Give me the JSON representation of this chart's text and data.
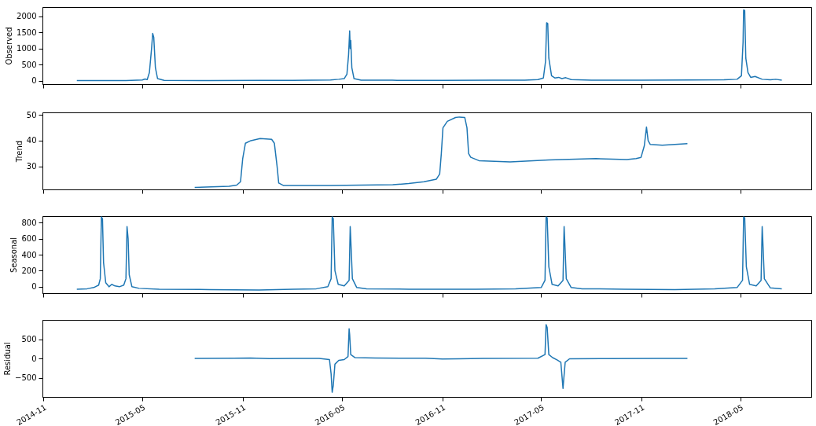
{
  "chart_data": [
    {
      "type": "line",
      "ylabel": "Observed",
      "color": "#1f77b4",
      "xlim": [
        "2014-10-30",
        "2018-09-08"
      ],
      "xticks": [
        "2014-11",
        "2015-05",
        "2015-11",
        "2016-05",
        "2016-11",
        "2017-05",
        "2017-11",
        "2018-05"
      ],
      "ylim": [
        -110,
        2290
      ],
      "yticks": [
        0,
        500,
        1000,
        1500,
        2000
      ],
      "tick_labels": "y",
      "x": [
        "2015-01-01",
        "2015-02-15",
        "2015-04-01",
        "2015-05-01",
        "2015-05-06",
        "2015-05-10",
        "2015-05-14",
        "2015-05-18",
        "2015-05-20",
        "2015-05-22",
        "2015-05-25",
        "2015-05-29",
        "2015-06-10",
        "2015-09-01",
        "2015-12-01",
        "2016-02-01",
        "2016-04-10",
        "2016-04-25",
        "2016-05-05",
        "2016-05-10",
        "2016-05-13",
        "2016-05-15",
        "2016-05-16",
        "2016-05-17",
        "2016-05-19",
        "2016-05-23",
        "2016-06-05",
        "2016-08-01",
        "2016-08-10",
        "2016-11-01",
        "2017-02-01",
        "2017-04-01",
        "2017-04-25",
        "2017-05-05",
        "2017-05-09",
        "2017-05-11",
        "2017-05-13",
        "2017-05-15",
        "2017-05-20",
        "2017-05-26",
        "2017-06-02",
        "2017-06-08",
        "2017-06-15",
        "2017-06-25",
        "2017-08-01",
        "2017-11-01",
        "2018-02-01",
        "2018-04-01",
        "2018-04-25",
        "2018-05-03",
        "2018-05-06",
        "2018-05-07",
        "2018-05-09",
        "2018-05-11",
        "2018-05-15",
        "2018-05-20",
        "2018-05-28",
        "2018-06-10",
        "2018-06-25",
        "2018-07-05",
        "2018-07-16"
      ],
      "values": [
        0,
        2,
        3,
        20,
        50,
        30,
        250,
        1000,
        1470,
        1350,
        400,
        60,
        5,
        2,
        5,
        8,
        20,
        40,
        60,
        200,
        800,
        1550,
        1000,
        1250,
        400,
        60,
        10,
        15,
        5,
        5,
        10,
        15,
        30,
        80,
        600,
        1800,
        1780,
        700,
        150,
        80,
        100,
        60,
        90,
        30,
        10,
        15,
        20,
        25,
        40,
        150,
        1200,
        2200,
        2180,
        700,
        250,
        100,
        130,
        40,
        25,
        40,
        10
      ]
    },
    {
      "type": "line",
      "ylabel": "Trend",
      "color": "#1f77b4",
      "xlim": [
        "2014-10-30",
        "2018-09-08"
      ],
      "xticks": [
        "2014-11",
        "2015-05",
        "2015-11",
        "2016-05",
        "2016-11",
        "2017-05",
        "2017-11",
        "2018-05"
      ],
      "ylim": [
        21,
        51
      ],
      "yticks": [
        30,
        40,
        50
      ],
      "tick_labels": "y",
      "x": [
        "2015-08-05",
        "2015-10-07",
        "2015-10-21",
        "2015-10-28",
        "2015-11-01",
        "2015-11-06",
        "2015-11-16",
        "2015-12-03",
        "2015-12-24",
        "2015-12-29",
        "2016-01-03",
        "2016-01-06",
        "2016-01-15",
        "2016-04-10",
        "2016-08-02",
        "2016-08-31",
        "2016-09-28",
        "2016-10-21",
        "2016-10-27",
        "2016-10-30",
        "2016-11-02",
        "2016-11-10",
        "2016-11-25",
        "2016-12-02",
        "2016-12-12",
        "2016-12-16",
        "2016-12-19",
        "2016-12-23",
        "2017-01-07",
        "2017-03-05",
        "2017-05-15",
        "2017-08-09",
        "2017-10-05",
        "2017-10-22",
        "2017-10-31",
        "2017-11-06",
        "2017-11-10",
        "2017-11-13",
        "2017-11-17",
        "2017-12-09",
        "2018-01-24"
      ],
      "values": [
        21.8,
        22.2,
        22.7,
        24,
        33,
        39,
        40,
        40.8,
        40.5,
        39,
        30,
        23.5,
        22.5,
        22.5,
        22.8,
        23.3,
        24,
        25,
        27,
        35,
        45,
        47.5,
        49,
        49.2,
        49,
        45,
        35,
        33.5,
        32.2,
        31.7,
        32.5,
        33,
        32.6,
        33,
        33.5,
        38,
        45.3,
        40,
        38.5,
        38.2,
        38.8
      ]
    },
    {
      "type": "line",
      "ylabel": "Seasonal",
      "color": "#1f77b4",
      "xlim": [
        "2014-10-30",
        "2018-09-08"
      ],
      "xticks": [
        "2014-11",
        "2015-05",
        "2015-11",
        "2016-05",
        "2016-11",
        "2017-05",
        "2017-11",
        "2018-05"
      ],
      "ylim": [
        -80,
        880
      ],
      "yticks": [
        0,
        200,
        400,
        600,
        800
      ],
      "tick_labels": "y",
      "x": [
        "2015-01-01",
        "2015-01-20",
        "2015-02-01",
        "2015-02-10",
        "2015-02-13",
        "2015-02-15",
        "2015-02-17",
        "2015-02-19",
        "2015-02-23",
        "2015-03-01",
        "2015-03-06",
        "2015-03-12",
        "2015-03-20",
        "2015-03-28",
        "2015-04-01",
        "2015-04-03",
        "2015-04-05",
        "2015-04-07",
        "2015-04-12",
        "2015-04-25",
        "2015-06-01",
        "2015-09-01",
        "2015-12-01",
        "2016-02-01",
        "2016-03-15",
        "2016-04-05",
        "2016-04-11",
        "2016-04-13",
        "2016-04-15",
        "2016-04-18",
        "2016-04-24",
        "2016-05-05",
        "2016-05-14",
        "2016-05-16",
        "2016-05-17",
        "2016-05-20",
        "2016-05-28",
        "2016-06-15",
        "2016-09-01",
        "2017-01-01",
        "2017-03-15",
        "2017-05-01",
        "2017-05-08",
        "2017-05-10",
        "2017-05-12",
        "2017-05-15",
        "2017-05-21",
        "2017-06-01",
        "2017-06-10",
        "2017-06-12",
        "2017-06-13",
        "2017-06-16",
        "2017-06-25",
        "2017-07-15",
        "2017-10-01",
        "2018-01-01",
        "2018-03-15",
        "2018-04-25",
        "2018-05-05",
        "2018-05-07",
        "2018-05-09",
        "2018-05-12",
        "2018-05-18",
        "2018-05-30",
        "2018-06-08",
        "2018-06-10",
        "2018-06-11",
        "2018-06-14",
        "2018-06-25",
        "2018-07-16"
      ],
      "values": [
        -30,
        -25,
        -10,
        20,
        100,
        870,
        850,
        300,
        50,
        0,
        30,
        10,
        0,
        20,
        100,
        750,
        600,
        150,
        0,
        -20,
        -30,
        -35,
        -40,
        -30,
        -25,
        0,
        100,
        870,
        850,
        200,
        30,
        10,
        80,
        750,
        600,
        100,
        -10,
        -25,
        -30,
        -30,
        -25,
        -10,
        80,
        870,
        860,
        250,
        30,
        10,
        80,
        750,
        600,
        100,
        -10,
        -25,
        -30,
        -35,
        -25,
        -10,
        80,
        870,
        860,
        250,
        30,
        10,
        80,
        750,
        600,
        100,
        -15,
        -25
      ]
    },
    {
      "type": "line",
      "ylabel": "Residual",
      "color": "#1f77b4",
      "xlim": [
        "2014-10-30",
        "2018-09-08"
      ],
      "xticks": [
        "2014-11",
        "2015-05",
        "2015-11",
        "2016-05",
        "2016-11",
        "2017-05",
        "2017-11",
        "2018-05"
      ],
      "ylim": [
        -1000,
        1000
      ],
      "yticks": [
        -500,
        0,
        500
      ],
      "x": [
        "2015-08-05",
        "2015-10-15",
        "2015-11-15",
        "2015-12-20",
        "2016-02-01",
        "2016-03-20",
        "2016-04-08",
        "2016-04-11",
        "2016-04-13",
        "2016-04-15",
        "2016-04-18",
        "2016-04-25",
        "2016-05-05",
        "2016-05-12",
        "2016-05-14",
        "2016-05-15",
        "2016-05-17",
        "2016-05-25",
        "2016-07-01",
        "2016-10-01",
        "2016-11-01",
        "2016-12-01",
        "2017-01-15",
        "2017-04-25",
        "2017-05-08",
        "2017-05-10",
        "2017-05-12",
        "2017-05-15",
        "2017-05-22",
        "2017-05-30",
        "2017-06-06",
        "2017-06-10",
        "2017-06-11",
        "2017-06-14",
        "2017-06-22",
        "2017-09-01",
        "2017-12-01",
        "2018-01-24"
      ],
      "values": [
        0,
        5,
        10,
        -5,
        0,
        0,
        -30,
        -400,
        -880,
        -700,
        -150,
        -50,
        -30,
        50,
        770,
        620,
        100,
        20,
        10,
        5,
        -15,
        -10,
        0,
        5,
        100,
        880,
        800,
        100,
        20,
        -40,
        -100,
        -780,
        -600,
        -100,
        -10,
        -5,
        0,
        0
      ]
    }
  ]
}
